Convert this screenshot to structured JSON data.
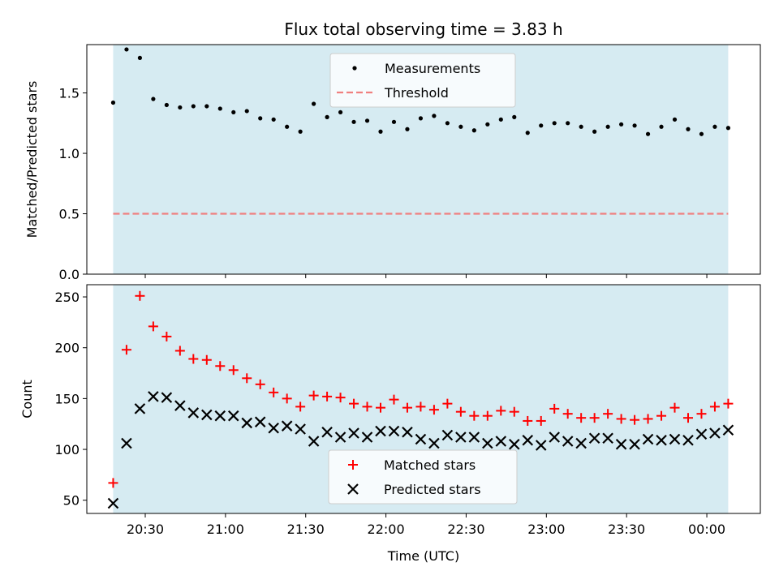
{
  "title": "Flux total observing time = 3.83 h",
  "colors": {
    "band": "#add8e6",
    "matched": "#ff0000",
    "predicted": "#000000",
    "threshold": "#f08080"
  },
  "chart_data": [
    {
      "type": "scatter",
      "ylabel": "Matched/Predicted stars",
      "xlabel": "",
      "ylim": [
        0,
        1.9
      ],
      "yticks": [
        0.0,
        0.5,
        1.0,
        1.5
      ],
      "ytick_labels": [
        "0.0",
        "0.5",
        "1.0",
        "1.5"
      ],
      "grid": false,
      "legend_placement": "upper-center",
      "observing_window_hours": [
        "20:18",
        "00:08"
      ],
      "threshold": 0.5,
      "threshold_name": "Threshold",
      "series": [
        {
          "name": "Measurements",
          "x": [
            "20:18",
            "20:23",
            "20:28",
            "20:33",
            "20:38",
            "20:43",
            "20:48",
            "20:53",
            "20:58",
            "21:03",
            "21:08",
            "21:13",
            "21:18",
            "21:23",
            "21:28",
            "21:33",
            "21:38",
            "21:43",
            "21:48",
            "21:53",
            "21:58",
            "22:03",
            "22:08",
            "22:13",
            "22:18",
            "22:23",
            "22:28",
            "22:33",
            "22:38",
            "22:43",
            "22:48",
            "22:53",
            "22:58",
            "23:03",
            "23:08",
            "23:13",
            "23:18",
            "23:23",
            "23:28",
            "23:33",
            "23:38",
            "23:43",
            "23:48",
            "23:53",
            "23:58",
            "00:03",
            "00:08"
          ],
          "y": [
            1.42,
            1.86,
            1.79,
            1.45,
            1.4,
            1.38,
            1.39,
            1.39,
            1.37,
            1.34,
            1.35,
            1.29,
            1.28,
            1.22,
            1.18,
            1.41,
            1.3,
            1.34,
            1.26,
            1.27,
            1.18,
            1.26,
            1.2,
            1.29,
            1.31,
            1.25,
            1.22,
            1.19,
            1.24,
            1.28,
            1.3,
            1.17,
            1.23,
            1.25,
            1.25,
            1.22,
            1.18,
            1.22,
            1.24,
            1.23,
            1.16,
            1.22,
            1.28,
            1.2,
            1.16,
            1.22,
            1.21
          ]
        }
      ]
    },
    {
      "type": "scatter",
      "ylabel": "Count",
      "xlabel": "Time (UTC)",
      "ylim": [
        37,
        262
      ],
      "yticks": [
        50,
        100,
        150,
        200,
        250
      ],
      "ytick_labels": [
        "50",
        "100",
        "150",
        "200",
        "250"
      ],
      "xticks": [
        "20:30",
        "21:00",
        "21:30",
        "22:00",
        "22:30",
        "23:00",
        "23:30",
        "00:00"
      ],
      "grid": false,
      "legend_placement": "lower-center",
      "series": [
        {
          "name": "Matched stars",
          "x": [
            "20:18",
            "20:23",
            "20:28",
            "20:33",
            "20:38",
            "20:43",
            "20:48",
            "20:53",
            "20:58",
            "21:03",
            "21:08",
            "21:13",
            "21:18",
            "21:23",
            "21:28",
            "21:33",
            "21:38",
            "21:43",
            "21:48",
            "21:53",
            "21:58",
            "22:03",
            "22:08",
            "22:13",
            "22:18",
            "22:23",
            "22:28",
            "22:33",
            "22:38",
            "22:43",
            "22:48",
            "22:53",
            "22:58",
            "23:03",
            "23:08",
            "23:13",
            "23:18",
            "23:23",
            "23:28",
            "23:33",
            "23:38",
            "23:43",
            "23:48",
            "23:53",
            "23:58",
            "00:03",
            "00:08"
          ],
          "y": [
            67,
            198,
            251,
            221,
            211,
            197,
            189,
            188,
            182,
            178,
            170,
            164,
            156,
            150,
            142,
            153,
            152,
            151,
            145,
            142,
            141,
            149,
            141,
            142,
            139,
            145,
            137,
            133,
            133,
            138,
            137,
            128,
            128,
            140,
            135,
            131,
            131,
            135,
            130,
            129,
            130,
            133,
            141,
            131,
            135,
            142,
            145
          ]
        },
        {
          "name": "Predicted stars",
          "x": [
            "20:18",
            "20:23",
            "20:28",
            "20:33",
            "20:38",
            "20:43",
            "20:48",
            "20:53",
            "20:58",
            "21:03",
            "21:08",
            "21:13",
            "21:18",
            "21:23",
            "21:28",
            "21:33",
            "21:38",
            "21:43",
            "21:48",
            "21:53",
            "21:58",
            "22:03",
            "22:08",
            "22:13",
            "22:18",
            "22:23",
            "22:28",
            "22:33",
            "22:38",
            "22:43",
            "22:48",
            "22:53",
            "22:58",
            "23:03",
            "23:08",
            "23:13",
            "23:18",
            "23:23",
            "23:28",
            "23:33",
            "23:38",
            "23:43",
            "23:48",
            "23:53",
            "23:58",
            "00:03",
            "00:08"
          ],
          "y": [
            47,
            106,
            140,
            152,
            151,
            143,
            136,
            134,
            133,
            133,
            126,
            127,
            121,
            123,
            120,
            108,
            117,
            112,
            116,
            112,
            118,
            118,
            117,
            110,
            106,
            114,
            112,
            112,
            106,
            108,
            105,
            109,
            104,
            112,
            108,
            106,
            111,
            111,
            105,
            105,
            110,
            109,
            110,
            109,
            115,
            116,
            119
          ]
        }
      ]
    }
  ]
}
